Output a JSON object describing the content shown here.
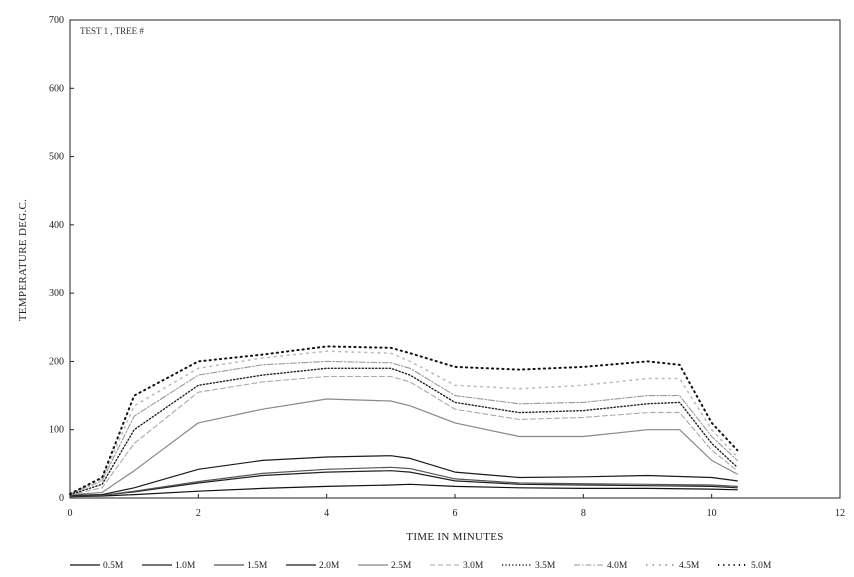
{
  "chart_data": {
    "type": "line",
    "title": "TEST 1 , TREE #",
    "xlabel": "TIME IN MINUTES",
    "ylabel": "TEMPERATURE DEG.C.",
    "xlim": [
      0,
      12
    ],
    "ylim": [
      0,
      700
    ],
    "xticks": [
      0,
      2,
      4,
      6,
      8,
      10,
      12
    ],
    "yticks": [
      0,
      100,
      200,
      300,
      400,
      500,
      600,
      700
    ],
    "grid": false,
    "legend_position": "bottom",
    "series": [
      {
        "name": "0.5M",
        "style": "solid",
        "color": "#111111",
        "points": [
          [
            0,
            2
          ],
          [
            0.5,
            3
          ],
          [
            1,
            5
          ],
          [
            2,
            10
          ],
          [
            3,
            14
          ],
          [
            4,
            17
          ],
          [
            5,
            19
          ],
          [
            5.3,
            20
          ],
          [
            6,
            17
          ],
          [
            7,
            15
          ],
          [
            8,
            14
          ],
          [
            9,
            14
          ],
          [
            10,
            13
          ],
          [
            10.4,
            12
          ]
        ]
      },
      {
        "name": "1.0M",
        "style": "solid",
        "color": "#222222",
        "points": [
          [
            0,
            3
          ],
          [
            0.5,
            4
          ],
          [
            1,
            9
          ],
          [
            2,
            22
          ],
          [
            3,
            33
          ],
          [
            4,
            38
          ],
          [
            5,
            40
          ],
          [
            5.3,
            38
          ],
          [
            6,
            25
          ],
          [
            7,
            20
          ],
          [
            8,
            19
          ],
          [
            9,
            18
          ],
          [
            10,
            17
          ],
          [
            10.4,
            15
          ]
        ]
      },
      {
        "name": "1.5M",
        "style": "solid",
        "color": "#555555",
        "points": [
          [
            0,
            3
          ],
          [
            0.5,
            4
          ],
          [
            1,
            10
          ],
          [
            2,
            24
          ],
          [
            3,
            36
          ],
          [
            4,
            42
          ],
          [
            5,
            45
          ],
          [
            5.3,
            43
          ],
          [
            6,
            28
          ],
          [
            7,
            22
          ],
          [
            8,
            21
          ],
          [
            9,
            20
          ],
          [
            10,
            19
          ],
          [
            10.4,
            17
          ]
        ]
      },
      {
        "name": "2.0M",
        "style": "solid",
        "color": "#1a1a1a",
        "points": [
          [
            0,
            4
          ],
          [
            0.5,
            5
          ],
          [
            1,
            15
          ],
          [
            2,
            42
          ],
          [
            3,
            55
          ],
          [
            4,
            60
          ],
          [
            5,
            62
          ],
          [
            5.3,
            58
          ],
          [
            6,
            38
          ],
          [
            7,
            30
          ],
          [
            8,
            31
          ],
          [
            9,
            33
          ],
          [
            10,
            30
          ],
          [
            10.4,
            25
          ]
        ]
      },
      {
        "name": "2.5M",
        "style": "solid",
        "color": "#888888",
        "points": [
          [
            0,
            5
          ],
          [
            0.5,
            8
          ],
          [
            1,
            40
          ],
          [
            2,
            110
          ],
          [
            3,
            130
          ],
          [
            4,
            145
          ],
          [
            5,
            142
          ],
          [
            5.3,
            135
          ],
          [
            6,
            110
          ],
          [
            7,
            90
          ],
          [
            8,
            90
          ],
          [
            9,
            100
          ],
          [
            9.5,
            100
          ],
          [
            10,
            55
          ],
          [
            10.4,
            35
          ]
        ]
      },
      {
        "name": "3.0M",
        "style": "dashed",
        "color": "#aaaaaa",
        "points": [
          [
            0,
            5
          ],
          [
            0.5,
            15
          ],
          [
            1,
            80
          ],
          [
            2,
            155
          ],
          [
            3,
            170
          ],
          [
            4,
            178
          ],
          [
            5,
            178
          ],
          [
            5.3,
            170
          ],
          [
            6,
            130
          ],
          [
            7,
            115
          ],
          [
            8,
            118
          ],
          [
            9,
            125
          ],
          [
            9.5,
            125
          ],
          [
            10,
            70
          ],
          [
            10.4,
            40
          ]
        ]
      },
      {
        "name": "3.5M",
        "style": "dotted",
        "color": "#222222",
        "points": [
          [
            0,
            5
          ],
          [
            0.5,
            20
          ],
          [
            1,
            100
          ],
          [
            2,
            165
          ],
          [
            3,
            180
          ],
          [
            4,
            190
          ],
          [
            5,
            190
          ],
          [
            5.3,
            180
          ],
          [
            6,
            140
          ],
          [
            7,
            125
          ],
          [
            8,
            128
          ],
          [
            9,
            138
          ],
          [
            9.5,
            140
          ],
          [
            10,
            80
          ],
          [
            10.4,
            45
          ]
        ]
      },
      {
        "name": "4.0M",
        "style": "dashdot",
        "color": "#999999",
        "points": [
          [
            0,
            6
          ],
          [
            0.5,
            25
          ],
          [
            1,
            120
          ],
          [
            2,
            180
          ],
          [
            3,
            195
          ],
          [
            4,
            200
          ],
          [
            5,
            198
          ],
          [
            5.3,
            190
          ],
          [
            6,
            150
          ],
          [
            7,
            138
          ],
          [
            8,
            140
          ],
          [
            9,
            150
          ],
          [
            9.5,
            150
          ],
          [
            10,
            90
          ],
          [
            10.4,
            55
          ]
        ]
      },
      {
        "name": "4.5M",
        "style": "sparse",
        "color": "#bbbbbb",
        "points": [
          [
            0,
            6
          ],
          [
            0.5,
            28
          ],
          [
            1,
            135
          ],
          [
            2,
            190
          ],
          [
            3,
            205
          ],
          [
            4,
            215
          ],
          [
            5,
            212
          ],
          [
            5.3,
            200
          ],
          [
            6,
            165
          ],
          [
            7,
            160
          ],
          [
            8,
            165
          ],
          [
            9,
            175
          ],
          [
            9.5,
            175
          ],
          [
            10,
            100
          ],
          [
            10.4,
            60
          ]
        ]
      },
      {
        "name": "5.0M",
        "style": "dots",
        "color": "#111111",
        "points": [
          [
            0,
            6
          ],
          [
            0.5,
            30
          ],
          [
            1,
            150
          ],
          [
            2,
            200
          ],
          [
            3,
            210
          ],
          [
            4,
            222
          ],
          [
            5,
            220
          ],
          [
            5.3,
            212
          ],
          [
            6,
            192
          ],
          [
            7,
            188
          ],
          [
            8,
            192
          ],
          [
            9,
            200
          ],
          [
            9.5,
            195
          ],
          [
            10,
            110
          ],
          [
            10.4,
            70
          ]
        ]
      }
    ]
  }
}
